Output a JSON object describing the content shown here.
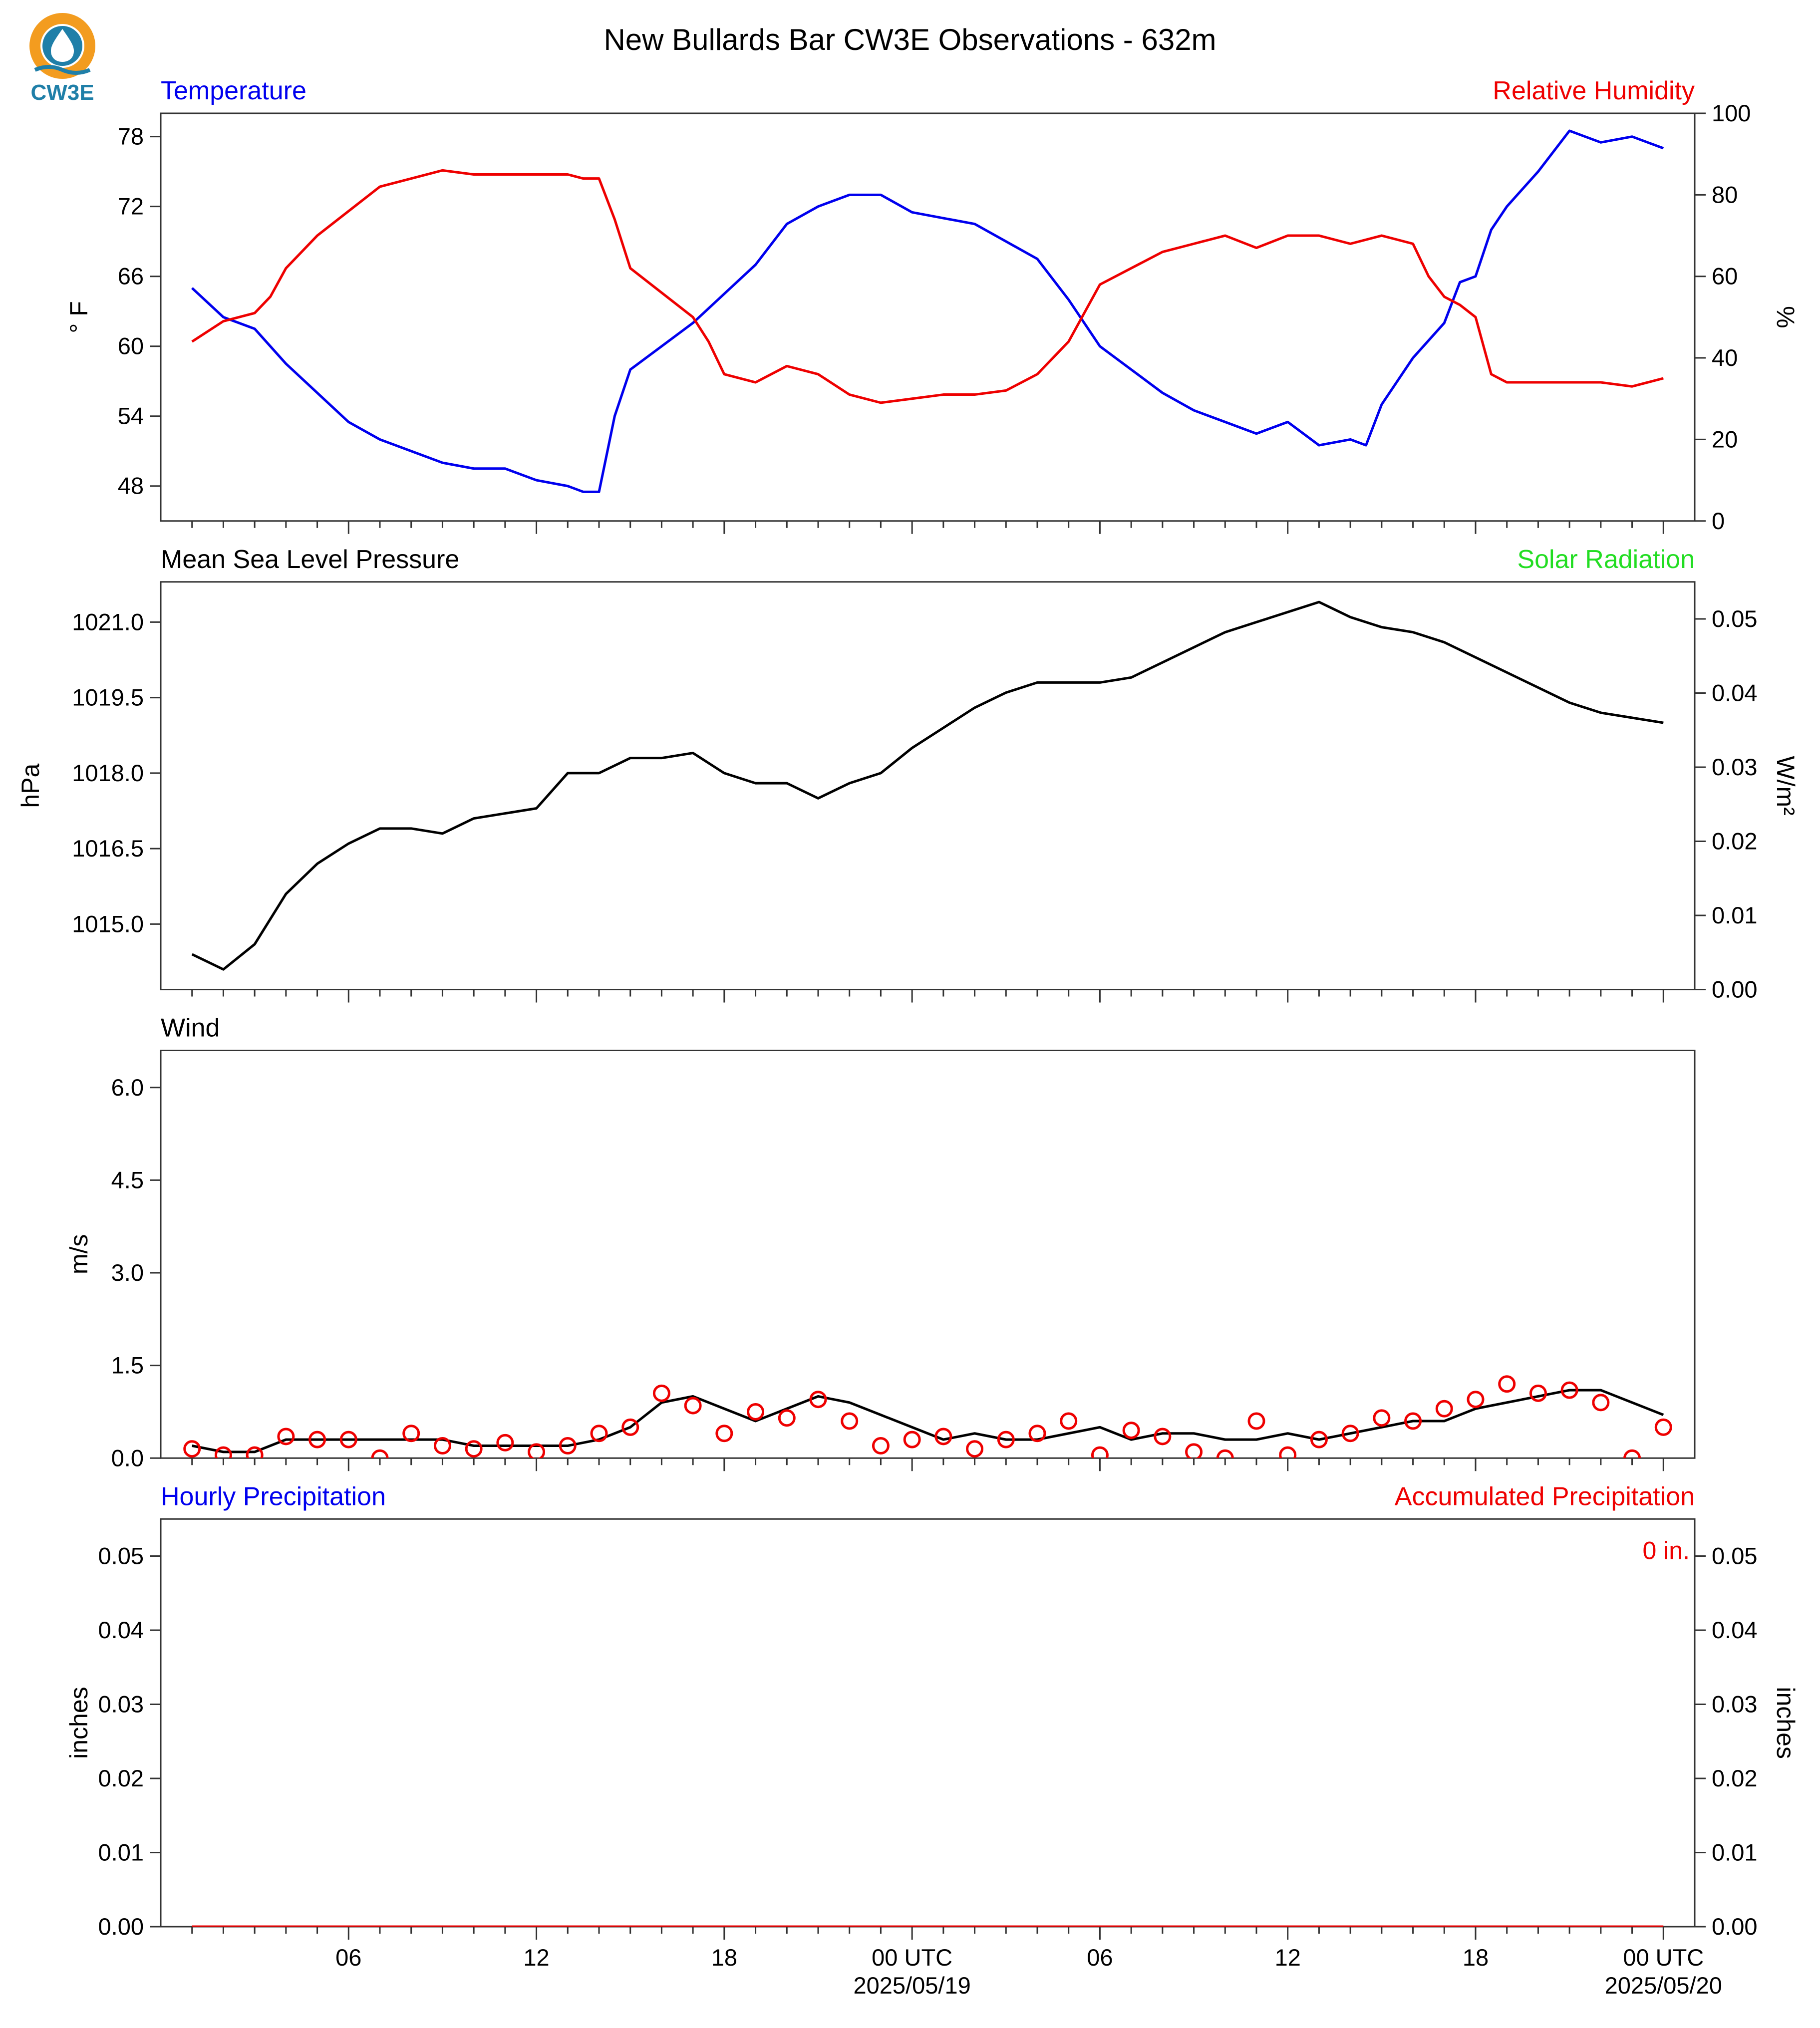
{
  "title": "New Bullards Bar CW3E Observations - 632m",
  "logo": {
    "text": "CW3E",
    "colors": {
      "orange": "#f39c1f",
      "teal": "#1f7fa8"
    }
  },
  "colors": {
    "blue": "#0000ee",
    "red": "#ee0000",
    "green": "#22dd22",
    "black": "#000000"
  },
  "x_axis": {
    "start_hour": 1,
    "end_hour": 48,
    "major_ticks": [
      {
        "hour": 6,
        "label": "06",
        "sublabel": ""
      },
      {
        "hour": 12,
        "label": "12",
        "sublabel": ""
      },
      {
        "hour": 18,
        "label": "18",
        "sublabel": ""
      },
      {
        "hour": 24,
        "label": "00 UTC",
        "sublabel": "2025/05/19"
      },
      {
        "hour": 30,
        "label": "06",
        "sublabel": ""
      },
      {
        "hour": 36,
        "label": "12",
        "sublabel": ""
      },
      {
        "hour": 42,
        "label": "18",
        "sublabel": ""
      },
      {
        "hour": 48,
        "label": "00 UTC",
        "sublabel": "2025/05/20"
      }
    ]
  },
  "chart_data": [
    {
      "type": "line",
      "left_title": "Temperature",
      "right_title": "Relative Humidity",
      "ylabel": "° F",
      "y2label": "%",
      "ylim": [
        45,
        80
      ],
      "y2lim": [
        0,
        100
      ],
      "yticks": [
        48,
        54,
        60,
        66,
        72,
        78
      ],
      "y2ticks": [
        0,
        20,
        40,
        60,
        80,
        100
      ],
      "series": [
        {
          "name": "Temperature",
          "axis": "left",
          "color": "#0000ee",
          "x": [
            0,
            1,
            2,
            3,
            4,
            5,
            6,
            7,
            8,
            9,
            10,
            11,
            12,
            12.5,
            13,
            13.5,
            14,
            15,
            16,
            17,
            18,
            19,
            20,
            21,
            22,
            23,
            24,
            25,
            26,
            27,
            28,
            29,
            30,
            31,
            32,
            33,
            34,
            35,
            36,
            37,
            37.5,
            38,
            39,
            40,
            40.5,
            41,
            41.5,
            42,
            43,
            44,
            45,
            46,
            47
          ],
          "y": [
            65,
            62.5,
            61.5,
            58.5,
            56,
            53.5,
            52,
            51,
            50,
            49.5,
            49.5,
            48.5,
            48,
            47.5,
            47.5,
            54,
            58,
            60,
            62,
            64.5,
            67,
            70.5,
            72,
            73,
            73,
            71.5,
            71,
            70.5,
            69,
            67.5,
            64,
            60,
            58,
            56,
            54.5,
            53.5,
            52.5,
            53.5,
            51.5,
            52,
            51.5,
            55,
            59,
            62,
            65.5,
            66,
            70,
            72,
            75,
            78.5,
            77.5,
            78,
            77
          ]
        },
        {
          "name": "Relative Humidity",
          "axis": "right",
          "color": "#ee0000",
          "x": [
            0,
            1,
            2,
            2.5,
            3,
            4,
            5,
            6,
            7,
            8,
            9,
            10,
            11,
            12,
            12.5,
            13,
            13.5,
            14,
            15,
            16,
            16.5,
            17,
            18,
            19,
            20,
            21,
            22,
            23,
            24,
            25,
            26,
            27,
            28,
            29,
            30,
            31,
            32,
            33,
            34,
            35,
            36,
            37,
            38,
            39,
            39.5,
            40,
            40.5,
            41,
            41.5,
            42,
            43,
            44,
            45,
            46,
            47
          ],
          "y": [
            44,
            49,
            51,
            55,
            62,
            70,
            76,
            82,
            84,
            86,
            85,
            85,
            85,
            85,
            84,
            84,
            74,
            62,
            56,
            50,
            44,
            36,
            34,
            38,
            36,
            31,
            29,
            30,
            31,
            31,
            32,
            36,
            44,
            58,
            62,
            66,
            68,
            70,
            67,
            70,
            70,
            68,
            70,
            68,
            60,
            55,
            53,
            50,
            36,
            34,
            34,
            34,
            34,
            33,
            35
          ]
        }
      ]
    },
    {
      "type": "line",
      "left_title": "Mean Sea Level Pressure",
      "right_title": "Solar Radiation",
      "ylabel": "hPa",
      "y2label": "W/m²",
      "ylim": [
        1013.7,
        1021.8
      ],
      "y2lim": [
        0,
        0.055
      ],
      "yticks": [
        1015.0,
        1016.5,
        1018.0,
        1019.5,
        1021.0
      ],
      "yticklabels": [
        "1015.0",
        "1016.5",
        "1018.0",
        "1019.5",
        "1021.0"
      ],
      "y2ticks": [
        0.0,
        0.01,
        0.02,
        0.03,
        0.04,
        0.05
      ],
      "y2ticklabels": [
        "0.00",
        "0.01",
        "0.02",
        "0.03",
        "0.04",
        "0.05"
      ],
      "series": [
        {
          "name": "",
          "axis": "left",
          "color": "#000000",
          "x": [
            0,
            1,
            2,
            3,
            4,
            5,
            6,
            7,
            8,
            9,
            10,
            11,
            12,
            13,
            14,
            15,
            16,
            17,
            18,
            19,
            20,
            21,
            22,
            23,
            24,
            25,
            26,
            27,
            28,
            29,
            30,
            31,
            32,
            33,
            34,
            35,
            36,
            37,
            38,
            39,
            40,
            41,
            42,
            43,
            44,
            45,
            46,
            47
          ],
          "y": [
            1014.4,
            1014.1,
            1014.6,
            1015.6,
            1016.2,
            1016.6,
            1016.9,
            1016.9,
            1016.8,
            1017.1,
            1017.2,
            1017.3,
            1018.0,
            1018.0,
            1018.3,
            1018.3,
            1018.4,
            1018.0,
            1017.8,
            1017.8,
            1017.5,
            1017.8,
            1018.0,
            1018.5,
            1018.9,
            1019.3,
            1019.6,
            1019.8,
            1019.8,
            1019.8,
            1019.9,
            1020.2,
            1020.5,
            1020.8,
            1021.0,
            1021.2,
            1021.4,
            1021.1,
            1020.9,
            1020.8,
            1020.6,
            1020.3,
            1020.0,
            1019.7,
            1019.4,
            1019.2,
            1019.1,
            1019.0
          ]
        }
      ]
    },
    {
      "type": "line",
      "left_title": "Wind",
      "right_title": "",
      "ylabel": "m/s",
      "ylim": [
        0,
        6.6
      ],
      "yticks": [
        0.0,
        1.5,
        3.0,
        4.5,
        6.0
      ],
      "yticklabels": [
        "0.0",
        "1.5",
        "3.0",
        "4.5",
        "6.0"
      ],
      "series": [
        {
          "name": "",
          "axis": "left",
          "color": "#000000",
          "style": "line",
          "x": [
            0,
            1,
            2,
            3,
            4,
            5,
            6,
            7,
            8,
            9,
            10,
            11,
            12,
            13,
            14,
            15,
            16,
            17,
            18,
            19,
            20,
            21,
            22,
            23,
            24,
            25,
            26,
            27,
            28,
            29,
            30,
            31,
            32,
            33,
            34,
            35,
            36,
            37,
            38,
            39,
            40,
            41,
            42,
            43,
            44,
            45,
            46,
            47
          ],
          "y": [
            0.2,
            0.1,
            0.1,
            0.3,
            0.3,
            0.3,
            0.3,
            0.3,
            0.3,
            0.2,
            0.2,
            0.2,
            0.2,
            0.3,
            0.5,
            0.9,
            1.0,
            0.8,
            0.6,
            0.8,
            1.0,
            0.9,
            0.7,
            0.5,
            0.3,
            0.4,
            0.3,
            0.3,
            0.4,
            0.5,
            0.3,
            0.4,
            0.4,
            0.3,
            0.3,
            0.4,
            0.3,
            0.4,
            0.5,
            0.6,
            0.6,
            0.8,
            0.9,
            1.0,
            1.1,
            1.1,
            0.9,
            0.7
          ]
        },
        {
          "name": "",
          "axis": "left",
          "color": "#ee0000",
          "style": "markers",
          "x": [
            0,
            1,
            2,
            3,
            4,
            5,
            6,
            7,
            8,
            9,
            10,
            11,
            12,
            13,
            14,
            15,
            16,
            17,
            18,
            19,
            20,
            21,
            22,
            23,
            24,
            25,
            26,
            27,
            28,
            29,
            30,
            31,
            32,
            33,
            34,
            35,
            36,
            37,
            38,
            39,
            40,
            41,
            42,
            43,
            44,
            45,
            46,
            47
          ],
          "y": [
            0.15,
            0.05,
            0.05,
            0.35,
            0.3,
            0.3,
            0.0,
            0.4,
            0.2,
            0.15,
            0.25,
            0.1,
            0.2,
            0.4,
            0.5,
            1.05,
            0.85,
            0.4,
            0.75,
            0.65,
            0.95,
            0.6,
            0.2,
            0.3,
            0.35,
            0.15,
            0.3,
            0.4,
            0.6,
            0.05,
            0.45,
            0.35,
            0.1,
            0.0,
            0.6,
            0.05,
            0.3,
            0.4,
            0.65,
            0.6,
            0.8,
            0.95,
            1.2,
            1.05,
            1.1,
            0.9,
            0.0,
            0.5
          ]
        }
      ]
    },
    {
      "type": "line",
      "left_title": "Hourly Precipitation",
      "right_title": "Accumulated Precipitation",
      "ylabel": "inches",
      "y2label": "inches",
      "ylim": [
        0,
        0.055
      ],
      "y2lim": [
        0,
        0.055
      ],
      "yticks": [
        0.0,
        0.01,
        0.02,
        0.03,
        0.04,
        0.05
      ],
      "yticklabels": [
        "0.00",
        "0.01",
        "0.02",
        "0.03",
        "0.04",
        "0.05"
      ],
      "y2ticks": [
        0.0,
        0.01,
        0.02,
        0.03,
        0.04,
        0.05
      ],
      "y2ticklabels": [
        "0.00",
        "0.01",
        "0.02",
        "0.03",
        "0.04",
        "0.05"
      ],
      "annotation": "0 in.",
      "series": [
        {
          "name": "",
          "axis": "right",
          "color": "#ee0000",
          "x": [
            0,
            47
          ],
          "y": [
            0,
            0
          ]
        }
      ]
    }
  ]
}
